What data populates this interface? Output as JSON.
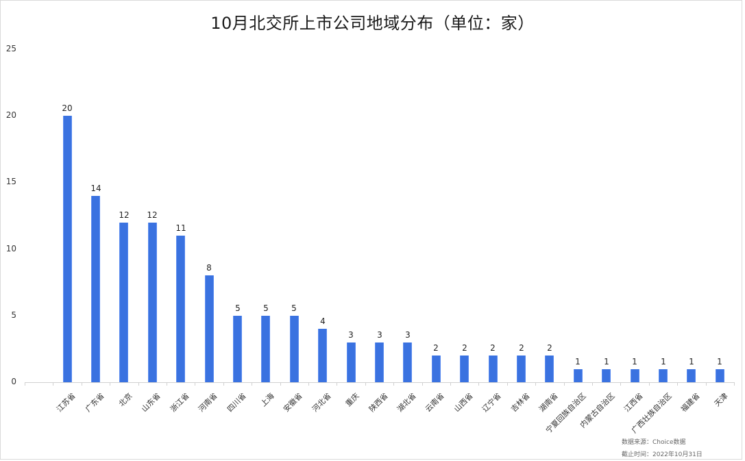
{
  "chart_data": {
    "type": "bar",
    "title": "10月北交所上市公司地域分布（单位：家）",
    "xlabel": "",
    "ylabel": "",
    "ylim": [
      0,
      25
    ],
    "yticks": [
      0,
      5,
      10,
      15,
      20,
      25
    ],
    "grid": false,
    "legend": null,
    "bar_color": "#3a72e0",
    "data_labels": true,
    "categories": [
      "江苏省",
      "广东省",
      "北京",
      "山东省",
      "浙江省",
      "河南省",
      "四川省",
      "上海",
      "安徽省",
      "河北省",
      "重庆",
      "陕西省",
      "湖北省",
      "云南省",
      "山西省",
      "辽宁省",
      "吉林省",
      "湖南省",
      "宁夏回族自治区",
      "内蒙古自治区",
      "江西省",
      "广西壮族自治区",
      "福建省",
      "天津"
    ],
    "values": [
      20,
      14,
      12,
      12,
      11,
      8,
      5,
      5,
      5,
      4,
      3,
      3,
      3,
      2,
      2,
      2,
      2,
      2,
      1,
      1,
      1,
      1,
      1,
      1
    ]
  },
  "title": "10月北交所上市公司地域分布（单位：家）",
  "notes": {
    "source": "数据来源：Choice数据",
    "cutoff": "截止时间：2022年10月31日"
  }
}
